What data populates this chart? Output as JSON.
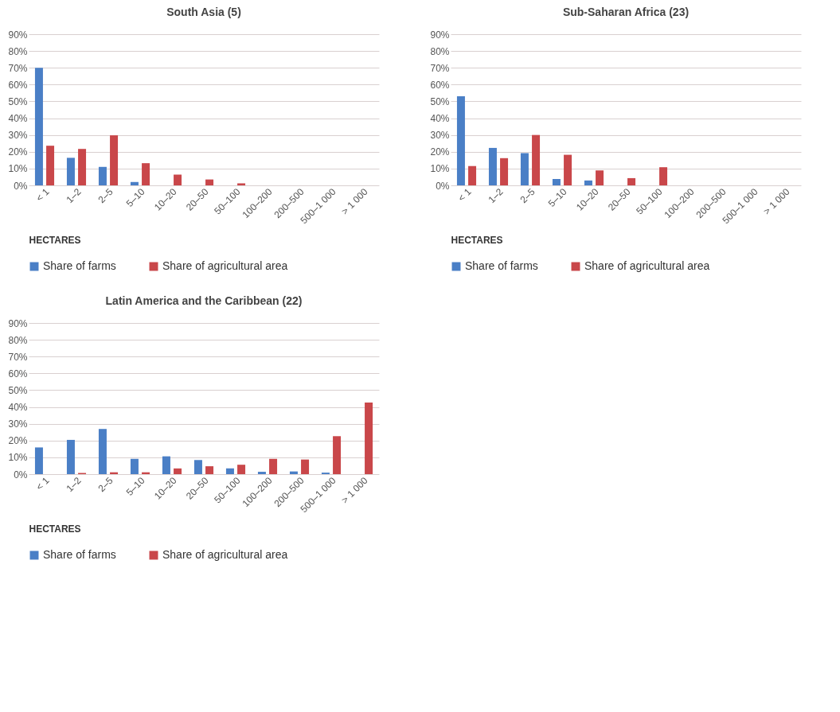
{
  "chart_data": [
    {
      "type": "bar",
      "title": "South Asia (5)",
      "xlabel": "HECTARES",
      "categories": [
        "< 1",
        "1–2",
        "2–5",
        "5–10",
        "10–20",
        "20–50",
        "50–100",
        "100–200",
        "200–500",
        "500–1 000",
        "> 1 000"
      ],
      "series": [
        {
          "name": "Share of farms",
          "color": "#4a7fc6",
          "values": [
            70,
            16.4,
            11,
            2,
            0,
            0,
            0,
            0,
            0,
            0,
            0
          ]
        },
        {
          "name": "Share of agricultural area",
          "color": "#c9474a",
          "values": [
            23.6,
            21.7,
            29.8,
            13.2,
            6.4,
            3.5,
            1.2,
            0,
            0,
            0,
            0
          ]
        }
      ],
      "ylim": [
        0,
        90
      ],
      "yticks": [
        {
          "value": 0,
          "label": "0%"
        },
        {
          "value": 10,
          "label": "10%"
        },
        {
          "value": 20,
          "label": "20%"
        },
        {
          "value": 30,
          "label": "30%"
        },
        {
          "value": 40,
          "label": "40%"
        },
        {
          "value": 50,
          "label": "50%"
        },
        {
          "value": 60,
          "label": "60%"
        },
        {
          "value": 70,
          "label": "70%"
        },
        {
          "value": 80,
          "label": "80%"
        },
        {
          "value": 90,
          "label": "90%"
        }
      ],
      "grid": "y",
      "legend": "bottom"
    },
    {
      "type": "bar",
      "title": "Sub-Saharan Africa (23)",
      "xlabel": "HECTARES",
      "categories": [
        "< 1",
        "1–2",
        "2–5",
        "5–10",
        "10–20",
        "20–50",
        "50–100",
        "100–200",
        "200–500",
        "500–1 000",
        "> 1 000"
      ],
      "series": [
        {
          "name": "Share of farms",
          "color": "#4a7fc6",
          "values": [
            53,
            22.3,
            19.2,
            3.8,
            2.9,
            0,
            0,
            0,
            0,
            0,
            0
          ]
        },
        {
          "name": "Share of agricultural area",
          "color": "#c9474a",
          "values": [
            11.5,
            16.2,
            30,
            18.2,
            8.9,
            4.3,
            10.8,
            0,
            0,
            0,
            0
          ]
        }
      ],
      "ylim": [
        0,
        90
      ],
      "yticks": [
        {
          "value": 0,
          "label": "0%"
        },
        {
          "value": 10,
          "label": "10%"
        },
        {
          "value": 20,
          "label": "20%"
        },
        {
          "value": 30,
          "label": "30%"
        },
        {
          "value": 40,
          "label": "40%"
        },
        {
          "value": 50,
          "label": "50%"
        },
        {
          "value": 60,
          "label": "60%"
        },
        {
          "value": 70,
          "label": "70%"
        },
        {
          "value": 80,
          "label": "80%"
        },
        {
          "value": 90,
          "label": "90%"
        }
      ],
      "grid": "y",
      "legend": "bottom"
    },
    {
      "type": "bar",
      "title": "Latin America and the Caribbean (22)",
      "xlabel": "HECTARES",
      "categories": [
        "< 1",
        "1–2",
        "2–5",
        "5–10",
        "10–20",
        "20–50",
        "50–100",
        "100–200",
        "200–500",
        "500–1 000",
        "> 1 000"
      ],
      "series": [
        {
          "name": "Share of farms",
          "color": "#4a7fc6",
          "values": [
            15.9,
            20.4,
            26.9,
            9.1,
            10.6,
            8.4,
            3.4,
            1.4,
            1.6,
            0.9,
            0
          ]
        },
        {
          "name": "Share of agricultural area",
          "color": "#c9474a",
          "values": [
            0,
            0.7,
            1.1,
            1.1,
            3.4,
            4.7,
            5.6,
            9.1,
            8.7,
            22.6,
            42.6
          ]
        }
      ],
      "ylim": [
        0,
        90
      ],
      "yticks": [
        {
          "value": 0,
          "label": "0%"
        },
        {
          "value": 10,
          "label": "10%"
        },
        {
          "value": 20,
          "label": "20%"
        },
        {
          "value": 30,
          "label": "30%"
        },
        {
          "value": 40,
          "label": "40%"
        },
        {
          "value": 50,
          "label": "50%"
        },
        {
          "value": 60,
          "label": "60%"
        },
        {
          "value": 70,
          "label": "70%"
        },
        {
          "value": 80,
          "label": "80%"
        },
        {
          "value": 90,
          "label": "90%"
        }
      ],
      "grid": "y",
      "legend": "bottom"
    }
  ]
}
